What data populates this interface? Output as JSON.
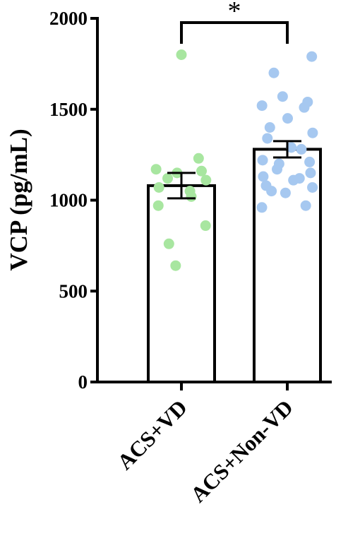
{
  "chart_data": {
    "type": "bar",
    "ylabel": "VCP (pg/mL)",
    "xlabel": "",
    "ylim": [
      0,
      2000
    ],
    "yticks": [
      0,
      500,
      1000,
      1500,
      2000
    ],
    "categories": [
      "ACS+VD",
      "ACS+Non-VD"
    ],
    "values": [
      1080,
      1280
    ],
    "sem": [
      70,
      45
    ],
    "bar_fill": "#ffffff",
    "bar_stroke": "#000000",
    "points": [
      {
        "category": "ACS+VD",
        "color": "#a8e6a0",
        "values": [
          1800,
          1230,
          1170,
          1160,
          1150,
          1120,
          1110,
          1070,
          1050,
          1020,
          970,
          860,
          760,
          640
        ]
      },
      {
        "category": "ACS+Non-VD",
        "color": "#a6c8f0",
        "values": [
          1790,
          1700,
          1570,
          1540,
          1520,
          1510,
          1450,
          1400,
          1370,
          1340,
          1290,
          1280,
          1220,
          1210,
          1200,
          1170,
          1150,
          1130,
          1120,
          1110,
          1080,
          1070,
          1050,
          1040,
          970,
          960
        ]
      }
    ],
    "significance": {
      "pair": [
        "ACS+VD",
        "ACS+Non-VD"
      ],
      "label": "*"
    }
  }
}
